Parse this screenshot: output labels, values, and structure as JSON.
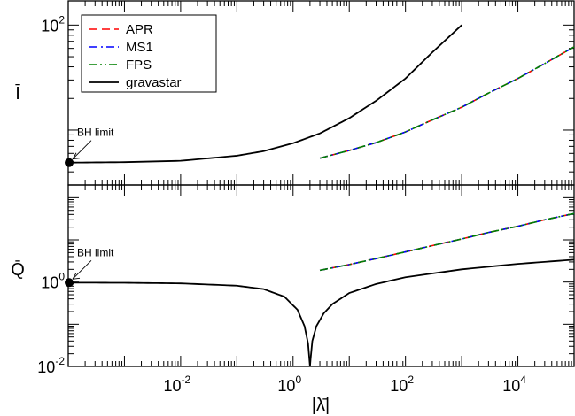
{
  "chart_data": [
    {
      "type": "line",
      "panel": "top",
      "ylabel": "Ī",
      "xscale": "log",
      "yscale": "log",
      "xlim": [
        0.0001,
        100000
      ],
      "ylim": [
        3,
        170
      ],
      "yticks": [
        {
          "value": 100,
          "label": "10",
          "exp": "2"
        }
      ],
      "series": [
        {
          "name": "APR",
          "color": "#ff0000",
          "dash": "dashed",
          "x": [
            3,
            10,
            30,
            100,
            300,
            1000,
            3000,
            10000,
            30000,
            100000
          ],
          "y": [
            5.4,
            6.4,
            7.6,
            9.6,
            12.5,
            16.5,
            22.5,
            31,
            43,
            62
          ]
        },
        {
          "name": "MS1",
          "color": "#0000ff",
          "dash": "dash-dot",
          "x": [
            3,
            10,
            30,
            100,
            300,
            1000,
            3000,
            10000,
            30000,
            100000
          ],
          "y": [
            5.4,
            6.4,
            7.6,
            9.6,
            12.5,
            16.5,
            22.5,
            31,
            43,
            62
          ]
        },
        {
          "name": "FPS",
          "color": "#008000",
          "dash": "dash-dot-dot",
          "x": [
            3,
            10,
            30,
            100,
            300,
            1000,
            3000,
            10000,
            30000,
            100000
          ],
          "y": [
            5.4,
            6.4,
            7.6,
            9.6,
            12.5,
            16.5,
            22.5,
            31,
            43,
            62
          ]
        },
        {
          "name": "gravastar",
          "color": "#000000",
          "dash": "solid",
          "x": [
            0.0001,
            0.001,
            0.01,
            0.1,
            0.3,
            1,
            3,
            10,
            30,
            100,
            300,
            1000
          ],
          "y": [
            4.9,
            4.95,
            5.1,
            5.7,
            6.3,
            7.5,
            9.3,
            13,
            19,
            31,
            55,
            100
          ]
        }
      ],
      "annotation": {
        "text": "BH limit",
        "x": 0.0001,
        "y": 4.9
      },
      "legend_position": "top-left"
    },
    {
      "type": "line",
      "panel": "bottom",
      "ylabel": "Q̄",
      "xlabel": "|λ̄|",
      "xscale": "log",
      "yscale": "log",
      "xlim": [
        0.0001,
        100000
      ],
      "ylim": [
        0.01,
        200
      ],
      "xticks": [
        {
          "value": 0.01,
          "label": "10",
          "exp": "-2"
        },
        {
          "value": 1,
          "label": "10",
          "exp": "0"
        },
        {
          "value": 100,
          "label": "10",
          "exp": "2"
        },
        {
          "value": 10000,
          "label": "10",
          "exp": "4"
        }
      ],
      "yticks": [
        {
          "value": 1,
          "label": "10",
          "exp": "0"
        },
        {
          "value": 0.01,
          "label": "10",
          "exp": "-2"
        }
      ],
      "series": [
        {
          "name": "APR",
          "color": "#ff0000",
          "dash": "dashed",
          "x": [
            3,
            10,
            30,
            100,
            300,
            1000,
            3000,
            10000,
            30000,
            100000
          ],
          "y": [
            1.9,
            2.6,
            3.6,
            5.2,
            7.3,
            10.5,
            15,
            21,
            30,
            42
          ]
        },
        {
          "name": "MS1",
          "color": "#0000ff",
          "dash": "dash-dot",
          "x": [
            3,
            10,
            30,
            100,
            300,
            1000,
            3000,
            10000,
            30000,
            100000
          ],
          "y": [
            1.9,
            2.6,
            3.6,
            5.2,
            7.3,
            10.5,
            15,
            21,
            30,
            42
          ]
        },
        {
          "name": "FPS",
          "color": "#008000",
          "dash": "dash-dot-dot",
          "x": [
            3,
            10,
            30,
            100,
            300,
            1000,
            3000,
            10000,
            30000,
            100000
          ],
          "y": [
            1.9,
            2.6,
            3.6,
            5.2,
            7.3,
            10.5,
            15,
            21,
            30,
            42
          ]
        },
        {
          "name": "gravastar",
          "color": "#000000",
          "dash": "solid",
          "x": [
            0.0001,
            0.001,
            0.01,
            0.1,
            0.3,
            0.7,
            1.2,
            1.6,
            1.85,
            1.95,
            2.0,
            2.05,
            2.2,
            2.6,
            3.5,
            5,
            10,
            30,
            100,
            1000,
            10000,
            100000
          ],
          "y": [
            0.97,
            0.96,
            0.93,
            0.82,
            0.68,
            0.45,
            0.22,
            0.09,
            0.035,
            0.015,
            0.01,
            0.015,
            0.04,
            0.09,
            0.18,
            0.3,
            0.55,
            0.9,
            1.3,
            2.0,
            2.7,
            3.4
          ]
        }
      ],
      "annotation": {
        "text": "BH limit",
        "x": 0.0001,
        "y": 0.97
      }
    }
  ]
}
